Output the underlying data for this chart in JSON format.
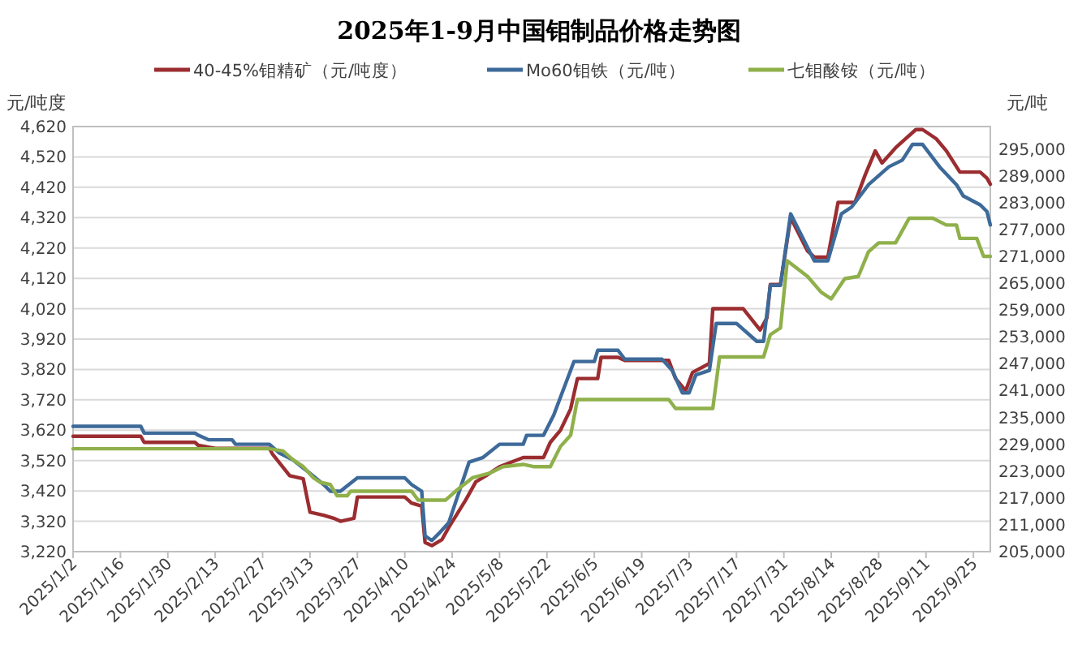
{
  "chart_data": {
    "type": "line",
    "title": "2025年1-9月中国钼制品价格走势图",
    "ylabel": "元/吨度",
    "y2label": "元/吨",
    "legend": "top",
    "grid": "y",
    "line_style": "solid",
    "marker": "none",
    "xlim": [
      "2025-01-02",
      "2025-09-30"
    ],
    "xticks": [
      {
        "value": "2025-01-02",
        "label": "2025/1/2"
      },
      {
        "value": "2025-01-16",
        "label": "2025/1/16"
      },
      {
        "value": "2025-01-30",
        "label": "2025/1/30"
      },
      {
        "value": "2025-02-13",
        "label": "2025/2/13"
      },
      {
        "value": "2025-02-27",
        "label": "2025/2/27"
      },
      {
        "value": "2025-03-13",
        "label": "2025/3/13"
      },
      {
        "value": "2025-03-27",
        "label": "2025/3/27"
      },
      {
        "value": "2025-04-10",
        "label": "2025/4/10"
      },
      {
        "value": "2025-04-24",
        "label": "2025/4/24"
      },
      {
        "value": "2025-05-08",
        "label": "2025/5/8"
      },
      {
        "value": "2025-05-22",
        "label": "2025/5/22"
      },
      {
        "value": "2025-06-05",
        "label": "2025/6/5"
      },
      {
        "value": "2025-06-19",
        "label": "2025/6/19"
      },
      {
        "value": "2025-07-03",
        "label": "2025/7/3"
      },
      {
        "value": "2025-07-17",
        "label": "2025/7/17"
      },
      {
        "value": "2025-07-31",
        "label": "2025/7/31"
      },
      {
        "value": "2025-08-14",
        "label": "2025/8/14"
      },
      {
        "value": "2025-08-28",
        "label": "2025/8/28"
      },
      {
        "value": "2025-09-11",
        "label": "2025/9/11"
      },
      {
        "value": "2025-09-25",
        "label": "2025/9/25"
      }
    ],
    "ylim": [
      3220,
      4620
    ],
    "yticks": [
      {
        "value": 3220,
        "label": "3,220"
      },
      {
        "value": 3320,
        "label": "3,320"
      },
      {
        "value": 3420,
        "label": "3,420"
      },
      {
        "value": 3520,
        "label": "3,520"
      },
      {
        "value": 3620,
        "label": "3,620"
      },
      {
        "value": 3720,
        "label": "3,720"
      },
      {
        "value": 3820,
        "label": "3,820"
      },
      {
        "value": 3920,
        "label": "3,920"
      },
      {
        "value": 4020,
        "label": "4,020"
      },
      {
        "value": 4120,
        "label": "4,120"
      },
      {
        "value": 4220,
        "label": "4,220"
      },
      {
        "value": 4320,
        "label": "4,320"
      },
      {
        "value": 4420,
        "label": "4,420"
      },
      {
        "value": 4520,
        "label": "4,520"
      },
      {
        "value": 4620,
        "label": "4,620"
      }
    ],
    "y2lim": [
      205000,
      300000
    ],
    "y2ticks": [
      {
        "value": 205000,
        "label": "205,000"
      },
      {
        "value": 211000,
        "label": "211,000"
      },
      {
        "value": 217000,
        "label": "217,000"
      },
      {
        "value": 223000,
        "label": "223,000"
      },
      {
        "value": 229000,
        "label": "229,000"
      },
      {
        "value": 235000,
        "label": "235,000"
      },
      {
        "value": 241000,
        "label": "241,000"
      },
      {
        "value": 247000,
        "label": "247,000"
      },
      {
        "value": 253000,
        "label": "253,000"
      },
      {
        "value": 259000,
        "label": "259,000"
      },
      {
        "value": 265000,
        "label": "265,000"
      },
      {
        "value": 271000,
        "label": "271,000"
      },
      {
        "value": 277000,
        "label": "277,000"
      },
      {
        "value": 283000,
        "label": "283,000"
      },
      {
        "value": 289000,
        "label": "289,000"
      },
      {
        "value": 295000,
        "label": "295,000"
      }
    ],
    "series": [
      {
        "name": "40-45%钼精矿（元/吨度）",
        "color": "#9b2d30",
        "x": [
          "2025-01-02",
          "2025-01-22",
          "2025-01-23",
          "2025-02-07",
          "2025-02-08",
          "2025-02-13",
          "2025-03-01",
          "2025-03-02",
          "2025-03-07",
          "2025-03-11",
          "2025-03-13",
          "2025-03-17",
          "2025-03-20",
          "2025-03-22",
          "2025-03-26",
          "2025-03-27",
          "2025-04-10",
          "2025-04-12",
          "2025-04-15",
          "2025-04-16",
          "2025-04-18",
          "2025-04-21",
          "2025-04-23",
          "2025-04-28",
          "2025-05-01",
          "2025-05-04",
          "2025-05-08",
          "2025-05-15",
          "2025-05-21",
          "2025-05-23",
          "2025-05-26",
          "2025-05-29",
          "2025-05-31",
          "2025-06-06",
          "2025-06-07",
          "2025-06-12",
          "2025-06-14",
          "2025-06-27",
          "2025-06-29",
          "2025-07-02",
          "2025-07-04",
          "2025-07-09",
          "2025-07-10",
          "2025-07-19",
          "2025-07-24",
          "2025-07-26",
          "2025-07-27",
          "2025-07-30",
          "2025-08-02",
          "2025-08-07",
          "2025-08-09",
          "2025-08-13",
          "2025-08-16",
          "2025-08-21",
          "2025-08-24",
          "2025-08-27",
          "2025-08-29",
          "2025-09-02",
          "2025-09-05",
          "2025-09-08",
          "2025-09-10",
          "2025-09-14",
          "2025-09-17",
          "2025-09-21",
          "2025-09-27",
          "2025-09-29",
          "2025-09-30"
        ],
        "values": [
          3600,
          3600,
          3580,
          3580,
          3570,
          3560,
          3560,
          3540,
          3470,
          3460,
          3350,
          3340,
          3330,
          3320,
          3330,
          3400,
          3400,
          3380,
          3370,
          3250,
          3240,
          3260,
          3300,
          3390,
          3450,
          3470,
          3500,
          3530,
          3530,
          3580,
          3620,
          3690,
          3790,
          3790,
          3860,
          3860,
          3850,
          3850,
          3790,
          3750,
          3810,
          3840,
          4020,
          4020,
          3950,
          3990,
          4100,
          4100,
          4320,
          4210,
          4190,
          4190,
          4370,
          4370,
          4460,
          4540,
          4500,
          4550,
          4580,
          4610,
          4610,
          4580,
          4540,
          4470,
          4470,
          4450,
          4430
        ]
      },
      {
        "name": "Mo60钼铁（元/吨）",
        "color": "#3d6a99",
        "axis": "y2",
        "x": [
          "2025-01-02",
          "2025-01-22",
          "2025-01-23",
          "2025-02-07",
          "2025-02-08",
          "2025-02-11",
          "2025-02-18",
          "2025-02-19",
          "2025-03-01",
          "2025-03-04",
          "2025-03-08",
          "2025-03-13",
          "2025-03-17",
          "2025-03-19",
          "2025-03-22",
          "2025-03-27",
          "2025-04-10",
          "2025-04-12",
          "2025-04-15",
          "2025-04-16",
          "2025-04-18",
          "2025-04-20",
          "2025-04-23",
          "2025-04-29",
          "2025-05-03",
          "2025-05-08",
          "2025-05-15",
          "2025-05-16",
          "2025-05-21",
          "2025-05-23",
          "2025-05-24",
          "2025-05-30",
          "2025-06-05",
          "2025-06-06",
          "2025-06-12",
          "2025-06-14",
          "2025-06-25",
          "2025-06-28",
          "2025-07-01",
          "2025-07-03",
          "2025-07-05",
          "2025-07-09",
          "2025-07-11",
          "2025-07-17",
          "2025-07-23",
          "2025-07-25",
          "2025-07-27",
          "2025-07-30",
          "2025-08-02",
          "2025-08-07",
          "2025-08-09",
          "2025-08-13",
          "2025-08-17",
          "2025-08-20",
          "2025-08-25",
          "2025-08-31",
          "2025-09-04",
          "2025-09-07",
          "2025-09-10",
          "2025-09-15",
          "2025-09-20",
          "2025-09-22",
          "2025-09-27",
          "2025-09-29",
          "2025-09-30"
        ],
        "values": [
          233000,
          233000,
          231500,
          231500,
          231000,
          230000,
          230000,
          229000,
          229000,
          227000,
          225500,
          222500,
          220000,
          218500,
          218500,
          221500,
          221500,
          220000,
          218500,
          208500,
          207500,
          209000,
          211500,
          225000,
          226000,
          229000,
          229000,
          231000,
          231000,
          234000,
          235500,
          247500,
          247500,
          250000,
          250000,
          248000,
          248000,
          245500,
          240500,
          240500,
          244500,
          245500,
          256000,
          256000,
          252000,
          252000,
          264500,
          264500,
          280500,
          273000,
          270000,
          270000,
          280500,
          282000,
          287000,
          291000,
          292500,
          296000,
          296000,
          291000,
          287000,
          284500,
          282500,
          281000,
          278000
        ]
      },
      {
        "name": "七钼酸铵（元/吨）",
        "color": "#8fb04a",
        "axis": "y2",
        "x": [
          "2025-01-02",
          "2025-03-01",
          "2025-03-05",
          "2025-03-08",
          "2025-03-11",
          "2025-03-14",
          "2025-03-16",
          "2025-03-19",
          "2025-03-21",
          "2025-03-24",
          "2025-03-25",
          "2025-04-12",
          "2025-04-14",
          "2025-04-22",
          "2025-04-25",
          "2025-04-30",
          "2025-05-05",
          "2025-05-09",
          "2025-05-15",
          "2025-05-18",
          "2025-05-23",
          "2025-05-26",
          "2025-05-29",
          "2025-05-31",
          "2025-06-27",
          "2025-06-29",
          "2025-07-10",
          "2025-07-12",
          "2025-07-25",
          "2025-07-27",
          "2025-07-30",
          "2025-08-01",
          "2025-08-07",
          "2025-08-11",
          "2025-08-14",
          "2025-08-18",
          "2025-08-22",
          "2025-08-25",
          "2025-08-28",
          "2025-09-02",
          "2025-09-06",
          "2025-09-13",
          "2025-09-17",
          "2025-09-20",
          "2025-09-21",
          "2025-09-26",
          "2025-09-28",
          "2025-09-30"
        ],
        "values": [
          228000,
          228000,
          227500,
          225500,
          224000,
          221500,
          220500,
          220000,
          217500,
          217500,
          218500,
          218500,
          216500,
          216500,
          218500,
          221500,
          222500,
          224000,
          224500,
          224000,
          224000,
          228500,
          231000,
          239000,
          239000,
          237000,
          237000,
          248500,
          248500,
          253500,
          255000,
          270000,
          266500,
          263000,
          261500,
          266000,
          266500,
          272000,
          274000,
          274000,
          279500,
          279500,
          278000,
          278000,
          275000,
          275000,
          271000,
          271000
        ]
      }
    ]
  }
}
